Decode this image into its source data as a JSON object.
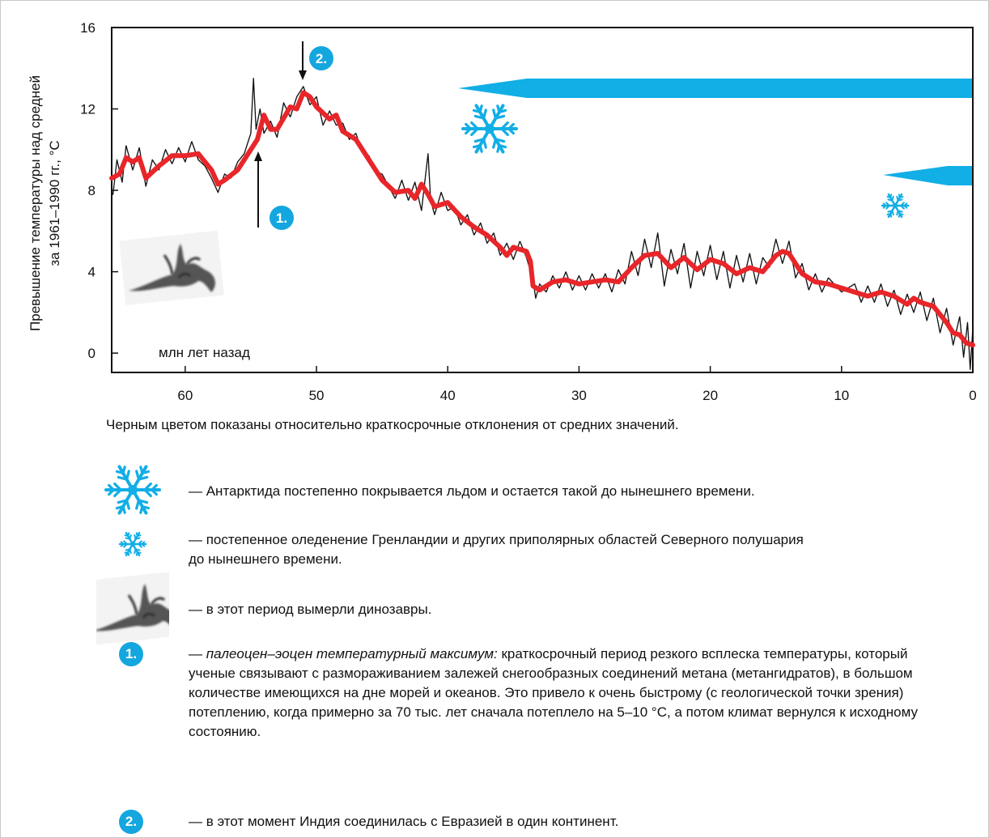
{
  "chart_data": {
    "type": "line",
    "y_label": [
      "Превышение температуры над средней",
      "за 1961–1990 гг., °С"
    ],
    "x_label": "млн лет назад",
    "xlim": [
      65.6,
      0
    ],
    "xticks": [
      60,
      50,
      40,
      30,
      20,
      10,
      0
    ],
    "ylim": [
      -0.95,
      16
    ],
    "yticks": [
      0,
      4,
      8,
      12,
      16
    ],
    "annotations": [
      "1.",
      "2."
    ],
    "series": [
      {
        "color": "#e8262a",
        "x": [
          65.6,
          65,
          64.5,
          64,
          63.5,
          63,
          62,
          61,
          60,
          59,
          58,
          57.5,
          57,
          56,
          55,
          54.5,
          54,
          53.5,
          53,
          52,
          51.5,
          51,
          50.5,
          50,
          49,
          48.5,
          48,
          47,
          46,
          45,
          44,
          43,
          42.5,
          42,
          41.5,
          41,
          40,
          39,
          38,
          37,
          36,
          35.5,
          35,
          34,
          33.7,
          33.5,
          33,
          32,
          31,
          30,
          29,
          28,
          27,
          26,
          25,
          24,
          23,
          22,
          21,
          20,
          19,
          18,
          17,
          16,
          15,
          14.5,
          14,
          13,
          12,
          11,
          10,
          9,
          8,
          7,
          6,
          5.5,
          5,
          4.5,
          4,
          3,
          2.5,
          2,
          1.5,
          1,
          0.5,
          0
        ],
        "values": [
          8.6,
          8.8,
          9.6,
          9.4,
          9.6,
          8.6,
          9.2,
          9.7,
          9.7,
          9.8,
          9.0,
          8.3,
          8.5,
          9.0,
          10.0,
          10.5,
          11.7,
          11.0,
          11.0,
          12.1,
          12.0,
          12.8,
          12.6,
          12.1,
          11.5,
          11.7,
          10.9,
          10.5,
          9.5,
          8.5,
          7.9,
          8.0,
          7.6,
          8.3,
          7.8,
          7.2,
          7.4,
          6.7,
          6.2,
          5.8,
          5.2,
          4.8,
          5.2,
          5.0,
          4.5,
          3.3,
          3.1,
          3.5,
          3.6,
          3.4,
          3.5,
          3.6,
          3.5,
          4.2,
          4.8,
          4.9,
          4.2,
          4.7,
          4.1,
          4.6,
          4.4,
          3.9,
          4.2,
          4.0,
          4.8,
          5.0,
          4.9,
          3.9,
          3.5,
          3.4,
          3.2,
          3.0,
          2.8,
          3.0,
          2.8,
          2.6,
          2.4,
          2.7,
          2.5,
          2.3,
          1.9,
          1.5,
          1.0,
          0.9,
          0.5,
          0.4
        ]
      },
      {
        "color": "#111111",
        "x": [
          65.5,
          65.2,
          64.8,
          64.5,
          64,
          63.5,
          63,
          62.5,
          62,
          61.5,
          61,
          60.5,
          60,
          59.5,
          59,
          58.5,
          58,
          57.5,
          57,
          56.5,
          56,
          55.5,
          55,
          54.8,
          54.6,
          54.3,
          54,
          53.5,
          53,
          52.5,
          52,
          51.5,
          51,
          50.5,
          50,
          49.5,
          49,
          48.5,
          48,
          47.5,
          47,
          46.5,
          46,
          45.5,
          45,
          44.5,
          44,
          43.5,
          43,
          42.5,
          42,
          41.5,
          41.3,
          41,
          40.5,
          40,
          39.5,
          39,
          38.5,
          38,
          37.5,
          37,
          36.5,
          36,
          35.5,
          35,
          34.5,
          34,
          33.5,
          33.3,
          33,
          32.5,
          32,
          31.5,
          31,
          30.5,
          30,
          29.5,
          29,
          28.5,
          28,
          27.5,
          27,
          26.5,
          26,
          25.5,
          25,
          24.5,
          24,
          23.5,
          23,
          22.5,
          22,
          21.5,
          21,
          20.5,
          20,
          19.5,
          19,
          18.5,
          18,
          17.5,
          17,
          16.5,
          16,
          15.5,
          15,
          14.5,
          14,
          13.5,
          13,
          12.5,
          12,
          11.5,
          11,
          10,
          9,
          8.5,
          8,
          7.5,
          7,
          6.5,
          6,
          5.5,
          5,
          4.5,
          4,
          3.5,
          3,
          2.5,
          2,
          1.5,
          1,
          0.7,
          0.4,
          0.2,
          0
        ],
        "values": [
          7.8,
          9.5,
          8.4,
          10.2,
          9.0,
          10.1,
          8.2,
          9.5,
          9.0,
          10.0,
          9.3,
          10.1,
          9.4,
          10.4,
          9.5,
          9.2,
          8.6,
          7.9,
          8.8,
          8.6,
          9.4,
          9.8,
          10.8,
          13.5,
          11.0,
          12.0,
          10.8,
          11.4,
          10.6,
          12.3,
          11.6,
          12.6,
          13.1,
          12.2,
          12.6,
          11.2,
          11.9,
          11.2,
          11.3,
          10.5,
          10.8,
          9.9,
          9.7,
          8.9,
          8.8,
          8.2,
          7.6,
          8.5,
          7.5,
          8.4,
          7.0,
          9.8,
          7.5,
          6.8,
          7.9,
          7.0,
          7.2,
          6.3,
          6.8,
          5.8,
          6.4,
          5.4,
          5.9,
          4.8,
          5.4,
          4.6,
          5.5,
          4.7,
          3.6,
          2.7,
          3.4,
          3.0,
          3.8,
          3.2,
          4.0,
          3.1,
          3.8,
          3.1,
          3.9,
          3.2,
          3.9,
          3.0,
          4.1,
          3.4,
          5.0,
          3.8,
          5.6,
          4.2,
          5.9,
          3.3,
          5.1,
          3.9,
          5.4,
          3.2,
          5.0,
          3.8,
          5.3,
          3.6,
          5.0,
          3.2,
          4.8,
          3.5,
          4.9,
          3.4,
          4.7,
          4.2,
          5.6,
          4.4,
          5.5,
          3.7,
          4.4,
          3.1,
          3.9,
          3.0,
          3.7,
          3.0,
          3.4,
          2.5,
          3.3,
          2.5,
          3.4,
          2.3,
          3.1,
          1.9,
          2.9,
          2.0,
          3.0,
          1.6,
          2.7,
          1.0,
          2.2,
          0.4,
          1.8,
          -0.2,
          1.5,
          -0.8,
          1.2
        ]
      }
    ]
  },
  "caption": "Черным цветом показаны относительно краткосрочные отклонения от средних значений.",
  "notes": [
    {
      "text": "— Антарктида постепенно покрывается льдом и остается такой до нынешнего времени."
    },
    {
      "text": "— постепенное оледенение Гренландии и других приполярных областей Северного полушария до нынешнего времени."
    },
    {
      "text": "— в этот период вымерли динозавры."
    },
    {
      "label": "1.",
      "dash": "—",
      "emphasis": "палеоцен–эоцен температурный максимум:",
      "text": "краткосрочный период резкого всплеска температуры, который ученые связывают с размораживанием залежей снегообразных соединений метана (метангидратов), в большом количестве имеющихся на дне морей и океанов. Это привело к очень быстрому (с геологической точки зрения) потеплению, когда примерно за 70 тыс. лет сначала потеплело на 5–10 °C, а потом климат вернулся к исходному состоянию."
    },
    {
      "label": "2.",
      "text": "— в этот момент Индия соединилась с Евразией в один континент."
    }
  ]
}
